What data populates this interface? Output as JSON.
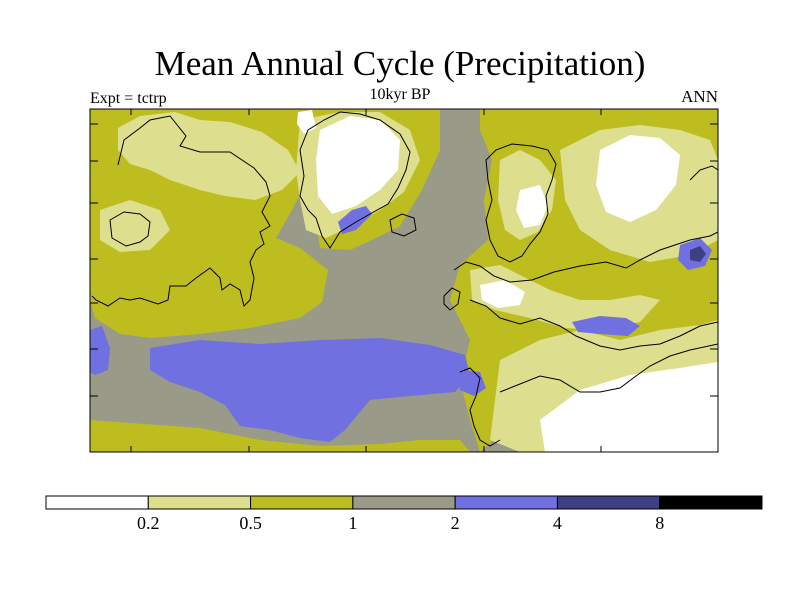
{
  "title": "Mean Annual Cycle (Precipitation)",
  "subtitle": "10kyr BP",
  "experiment_label": "Expt = tctrp",
  "season_label": "ANN",
  "legend": {
    "tick_labels": [
      "0.2",
      "0.5",
      "1",
      "2",
      "4",
      "8"
    ],
    "bins": [
      {
        "range": "< 0.2",
        "color": "#ffffff"
      },
      {
        "range": "0.2 - 0.5",
        "color": "#dede8f"
      },
      {
        "range": "0.5 - 1",
        "color": "#bdbd1f"
      },
      {
        "range": "1 - 2",
        "color": "#9a9a89"
      },
      {
        "range": "2 - 4",
        "color": "#7070e0"
      },
      {
        "range": "4 - 8",
        "color": "#3f3f85"
      },
      {
        "range": "> 8",
        "color": "#000000"
      }
    ]
  }
}
